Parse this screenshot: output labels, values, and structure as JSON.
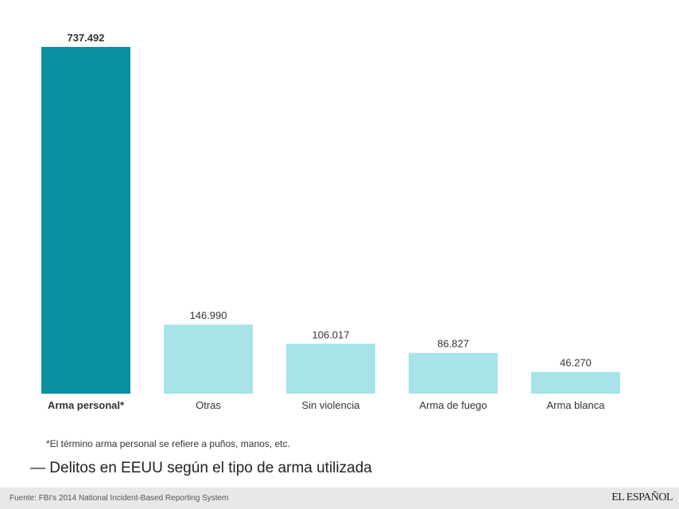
{
  "chart_data": {
    "type": "bar",
    "title": "Delitos en EEUU según el tipo de arma utilizada",
    "categories": [
      "Arma personal*",
      "Otras",
      "Sin violencia",
      "Arma de fuego",
      "Arma blanca"
    ],
    "values": [
      737492,
      146990,
      106017,
      86827,
      46270
    ],
    "value_labels": [
      "737.492",
      "146.990",
      "106.017",
      "86.827",
      "46.270"
    ],
    "highlight_index": 0,
    "colors": {
      "highlight": "#0a8f9e",
      "default": "#a8e3ea"
    },
    "xlabel": "",
    "ylabel": "",
    "ylim": [
      0,
      737492
    ],
    "grid": false
  },
  "note": "*El término arma personal se refiere a puños, manos, etc.",
  "title_line": "— Delitos en EEUU según el tipo de arma utilizada",
  "footer": {
    "source": "Fuente: FBI's 2014 National Incident-Based Reporting System",
    "logo": "EL ESPAÑOL"
  }
}
